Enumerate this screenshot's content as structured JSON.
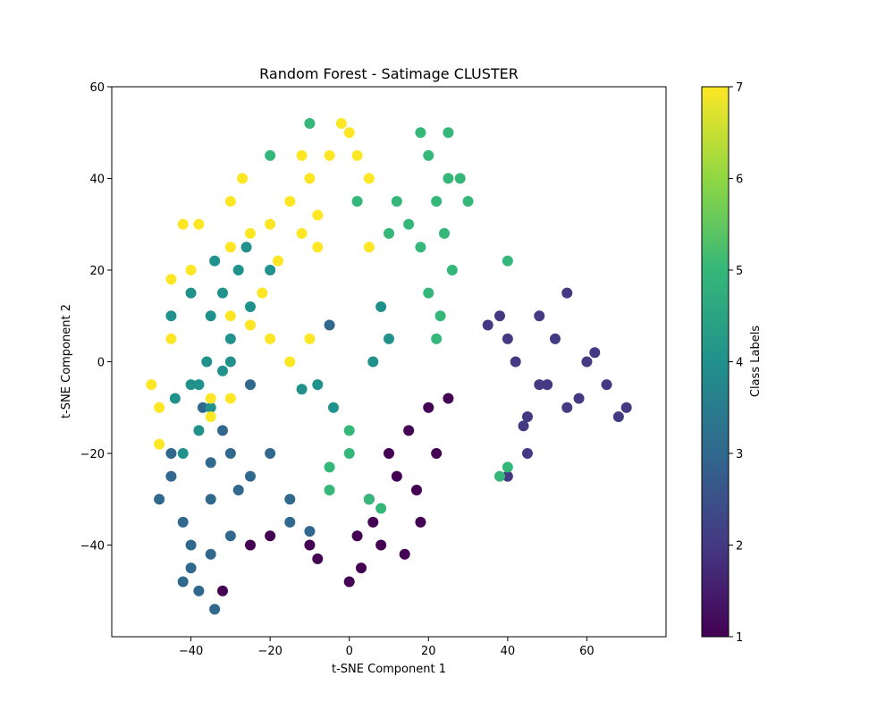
{
  "chart_data": {
    "type": "scatter",
    "title": "Random Forest - Satimage CLUSTER",
    "xlabel": "t-SNE Component 1",
    "ylabel": "t-SNE Component 2",
    "xlim": [
      -60,
      80
    ],
    "ylim": [
      -60,
      60
    ],
    "x_ticks": [
      -40,
      -20,
      0,
      20,
      40,
      60
    ],
    "y_ticks": [
      -40,
      -20,
      0,
      20,
      40,
      60
    ],
    "x_tick_labels": [
      "−40",
      "−20",
      "0",
      "20",
      "40",
      "60"
    ],
    "y_tick_labels": [
      "−40",
      "−20",
      "0",
      "20",
      "40",
      "60"
    ],
    "grid": false,
    "colormap": "viridis",
    "colorbar": {
      "label": "Class Labels",
      "range": [
        1,
        7
      ],
      "ticks": [
        1,
        2,
        3,
        4,
        5,
        6,
        7
      ],
      "tick_labels": [
        "1",
        "2",
        "3",
        "4",
        "5",
        "6",
        "7"
      ]
    },
    "clusters": [
      {
        "class": 1,
        "points": [
          [
            12,
            -25
          ],
          [
            15,
            -15
          ],
          [
            20,
            -10
          ],
          [
            8,
            -40
          ],
          [
            3,
            -45
          ],
          [
            22,
            -20
          ],
          [
            5,
            -30
          ],
          [
            18,
            -35
          ],
          [
            10,
            -20
          ],
          [
            25,
            -8
          ],
          [
            0,
            -48
          ],
          [
            14,
            -42
          ],
          [
            -10,
            -40
          ],
          [
            -8,
            -43
          ],
          [
            -20,
            -38
          ],
          [
            -32,
            -50
          ],
          [
            -25,
            -40
          ],
          [
            6,
            -35
          ],
          [
            17,
            -28
          ],
          [
            2,
            -38
          ]
        ]
      },
      {
        "class": 2,
        "points": [
          [
            50,
            -5
          ],
          [
            55,
            15
          ],
          [
            65,
            -5
          ],
          [
            70,
            -10
          ],
          [
            48,
            10
          ],
          [
            40,
            5
          ],
          [
            42,
            0
          ],
          [
            45,
            -12
          ],
          [
            60,
            0
          ],
          [
            68,
            -12
          ],
          [
            58,
            -8
          ],
          [
            52,
            5
          ],
          [
            40,
            -25
          ],
          [
            45,
            -20
          ],
          [
            35,
            8
          ],
          [
            38,
            10
          ],
          [
            62,
            2
          ],
          [
            55,
            -10
          ],
          [
            48,
            -5
          ],
          [
            44,
            -14
          ]
        ]
      },
      {
        "class": 3,
        "points": [
          [
            -40,
            -40
          ],
          [
            -35,
            -30
          ],
          [
            -45,
            -25
          ],
          [
            -30,
            -20
          ],
          [
            -40,
            -45
          ],
          [
            -38,
            -50
          ],
          [
            -32,
            -15
          ],
          [
            -48,
            -30
          ],
          [
            -28,
            -28
          ],
          [
            -35,
            -42
          ],
          [
            -42,
            -35
          ],
          [
            -30,
            -38
          ],
          [
            -25,
            -25
          ],
          [
            -20,
            -20
          ],
          [
            -15,
            -35
          ],
          [
            -10,
            -37
          ],
          [
            -45,
            -20
          ],
          [
            -35,
            -22
          ],
          [
            -37,
            -10
          ],
          [
            -25,
            -5
          ],
          [
            -5,
            8
          ],
          [
            -15,
            -30
          ],
          [
            -42,
            -48
          ],
          [
            -34,
            -54
          ]
        ]
      },
      {
        "class": 4,
        "points": [
          [
            -28,
            20
          ],
          [
            -32,
            15
          ],
          [
            -35,
            10
          ],
          [
            -30,
            5
          ],
          [
            -38,
            -5
          ],
          [
            -35,
            -10
          ],
          [
            -40,
            -5
          ],
          [
            -30,
            0
          ],
          [
            -42,
            -20
          ],
          [
            -38,
            -15
          ],
          [
            -25,
            12
          ],
          [
            -20,
            20
          ],
          [
            -45,
            10
          ],
          [
            -34,
            22
          ],
          [
            -26,
            25
          ],
          [
            -40,
            15
          ],
          [
            -32,
            -2
          ],
          [
            -36,
            0
          ],
          [
            -44,
            -8
          ],
          [
            8,
            12
          ],
          [
            10,
            5
          ],
          [
            -8,
            -5
          ],
          [
            -4,
            -10
          ],
          [
            -12,
            -6
          ],
          [
            6,
            0
          ]
        ]
      },
      {
        "class": 5,
        "points": [
          [
            20,
            45
          ],
          [
            22,
            35
          ],
          [
            25,
            40
          ],
          [
            15,
            30
          ],
          [
            10,
            28
          ],
          [
            18,
            50
          ],
          [
            25,
            50
          ],
          [
            24,
            28
          ],
          [
            28,
            40
          ],
          [
            18,
            25
          ],
          [
            12,
            35
          ],
          [
            30,
            35
          ],
          [
            23,
            10
          ],
          [
            20,
            15
          ],
          [
            22,
            5
          ],
          [
            -5,
            -28
          ],
          [
            5,
            -30
          ],
          [
            38,
            -25
          ],
          [
            40,
            -23
          ],
          [
            0,
            -15
          ],
          [
            8,
            -32
          ],
          [
            -20,
            45
          ],
          [
            -10,
            52
          ],
          [
            2,
            35
          ],
          [
            26,
            20
          ],
          [
            40,
            22
          ],
          [
            -5,
            -23
          ],
          [
            0,
            -20
          ]
        ]
      },
      {
        "class": 7,
        "points": [
          [
            0,
            50
          ],
          [
            2,
            45
          ],
          [
            -5,
            45
          ],
          [
            -10,
            40
          ],
          [
            -15,
            35
          ],
          [
            -20,
            30
          ],
          [
            -25,
            28
          ],
          [
            -30,
            25
          ],
          [
            -40,
            20
          ],
          [
            -45,
            18
          ],
          [
            -38,
            30
          ],
          [
            -42,
            30
          ],
          [
            -30,
            10
          ],
          [
            -25,
            8
          ],
          [
            -20,
            5
          ],
          [
            -15,
            0
          ],
          [
            -10,
            5
          ],
          [
            -50,
            -5
          ],
          [
            -48,
            -10
          ],
          [
            -30,
            -8
          ],
          [
            -35,
            -8
          ],
          [
            -22,
            15
          ],
          [
            -18,
            22
          ],
          [
            -12,
            28
          ],
          [
            -8,
            32
          ],
          [
            5,
            40
          ],
          [
            -2,
            52
          ],
          [
            -12,
            45
          ],
          [
            -8,
            25
          ],
          [
            5,
            25
          ],
          [
            -27,
            40
          ],
          [
            -30,
            35
          ],
          [
            -35,
            -12
          ],
          [
            -45,
            5
          ],
          [
            -48,
            -18
          ]
        ]
      }
    ]
  }
}
